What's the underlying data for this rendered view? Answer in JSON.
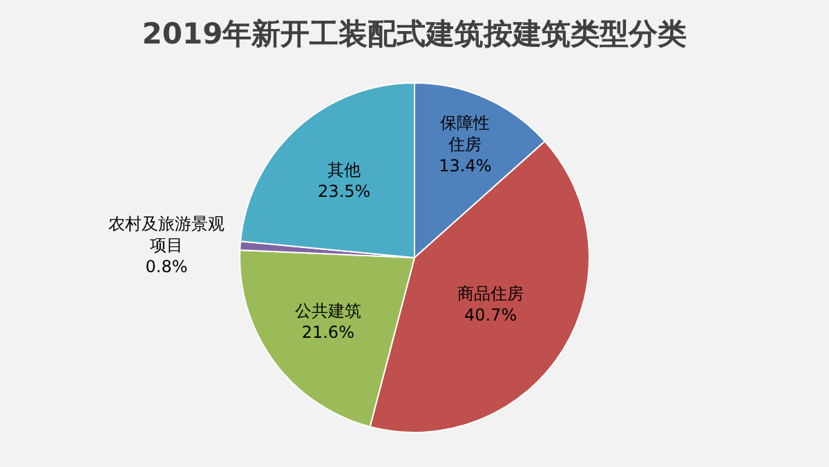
{
  "chart_data": {
    "type": "pie",
    "title": "2019年新开工装配式建筑按建筑类型分类",
    "categories": [
      "保障性住房",
      "商品住房",
      "公共建筑",
      "农村及旅游景观项目",
      "其他"
    ],
    "values": [
      13.4,
      40.7,
      21.6,
      0.8,
      23.5
    ],
    "value_labels": [
      "13.4%",
      "40.7%",
      "21.6%",
      "0.8%",
      "23.5%"
    ],
    "colors": [
      "#4f81bd",
      "#c0504d",
      "#9bbb59",
      "#8064a2",
      "#4bacc6"
    ],
    "legend": false
  }
}
